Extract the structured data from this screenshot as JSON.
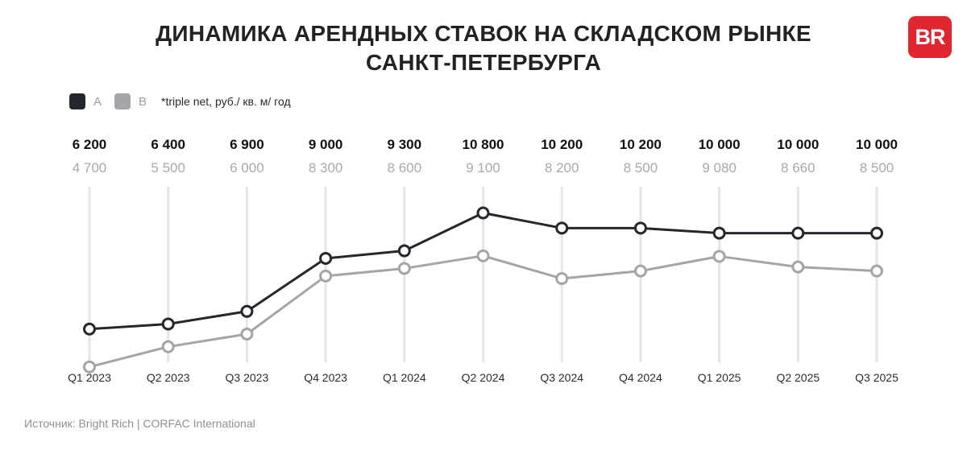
{
  "title": [
    "ДИНАМИКА АРЕНДНЫХ СТАВОК НА СКЛАДСКОМ РЫНКЕ",
    "САНКТ-ПЕТЕРБУРГА"
  ],
  "logo_text": "BR",
  "legend": {
    "a_label": "A",
    "b_label": "B",
    "note": "*triple net,  руб./ кв. м/ год"
  },
  "source": "Источник: Bright Rich | CORFAC International",
  "colors": {
    "a": "#24272c",
    "b": "#a4a5a9",
    "grid": "#e6e6e6",
    "logo": "#e0262e"
  },
  "chart_data": {
    "type": "line",
    "categories": [
      "Q1 2023",
      "Q2 2023",
      "Q3 2023",
      "Q4 2023",
      "Q1 2024",
      "Q2 2024",
      "Q3 2024",
      "Q4 2024",
      "Q1 2025",
      "Q2 2025",
      "Q3 2025"
    ],
    "series": [
      {
        "name": "A",
        "values": [
          6200,
          6400,
          6900,
          9000,
          9300,
          10800,
          10200,
          10200,
          10000,
          10000,
          10000
        ],
        "labels": [
          "6 200",
          "6 400",
          "6 900",
          "9 000",
          "9 300",
          "10 800",
          "10 200",
          "10 200",
          "10 000",
          "10 000",
          "10 000"
        ]
      },
      {
        "name": "B",
        "values": [
          4700,
          5500,
          6000,
          8300,
          8600,
          9100,
          8200,
          8500,
          9080,
          8660,
          8500
        ],
        "labels": [
          "4 700",
          "5 500",
          "6 000",
          "8 300",
          "8 600",
          "9 100",
          "8 200",
          "8 500",
          "9 080",
          "8 660",
          "8 500"
        ]
      }
    ],
    "unit_note": "*triple net,  руб./ кв. м/ год",
    "grid": true,
    "legend_position": "top-left"
  }
}
